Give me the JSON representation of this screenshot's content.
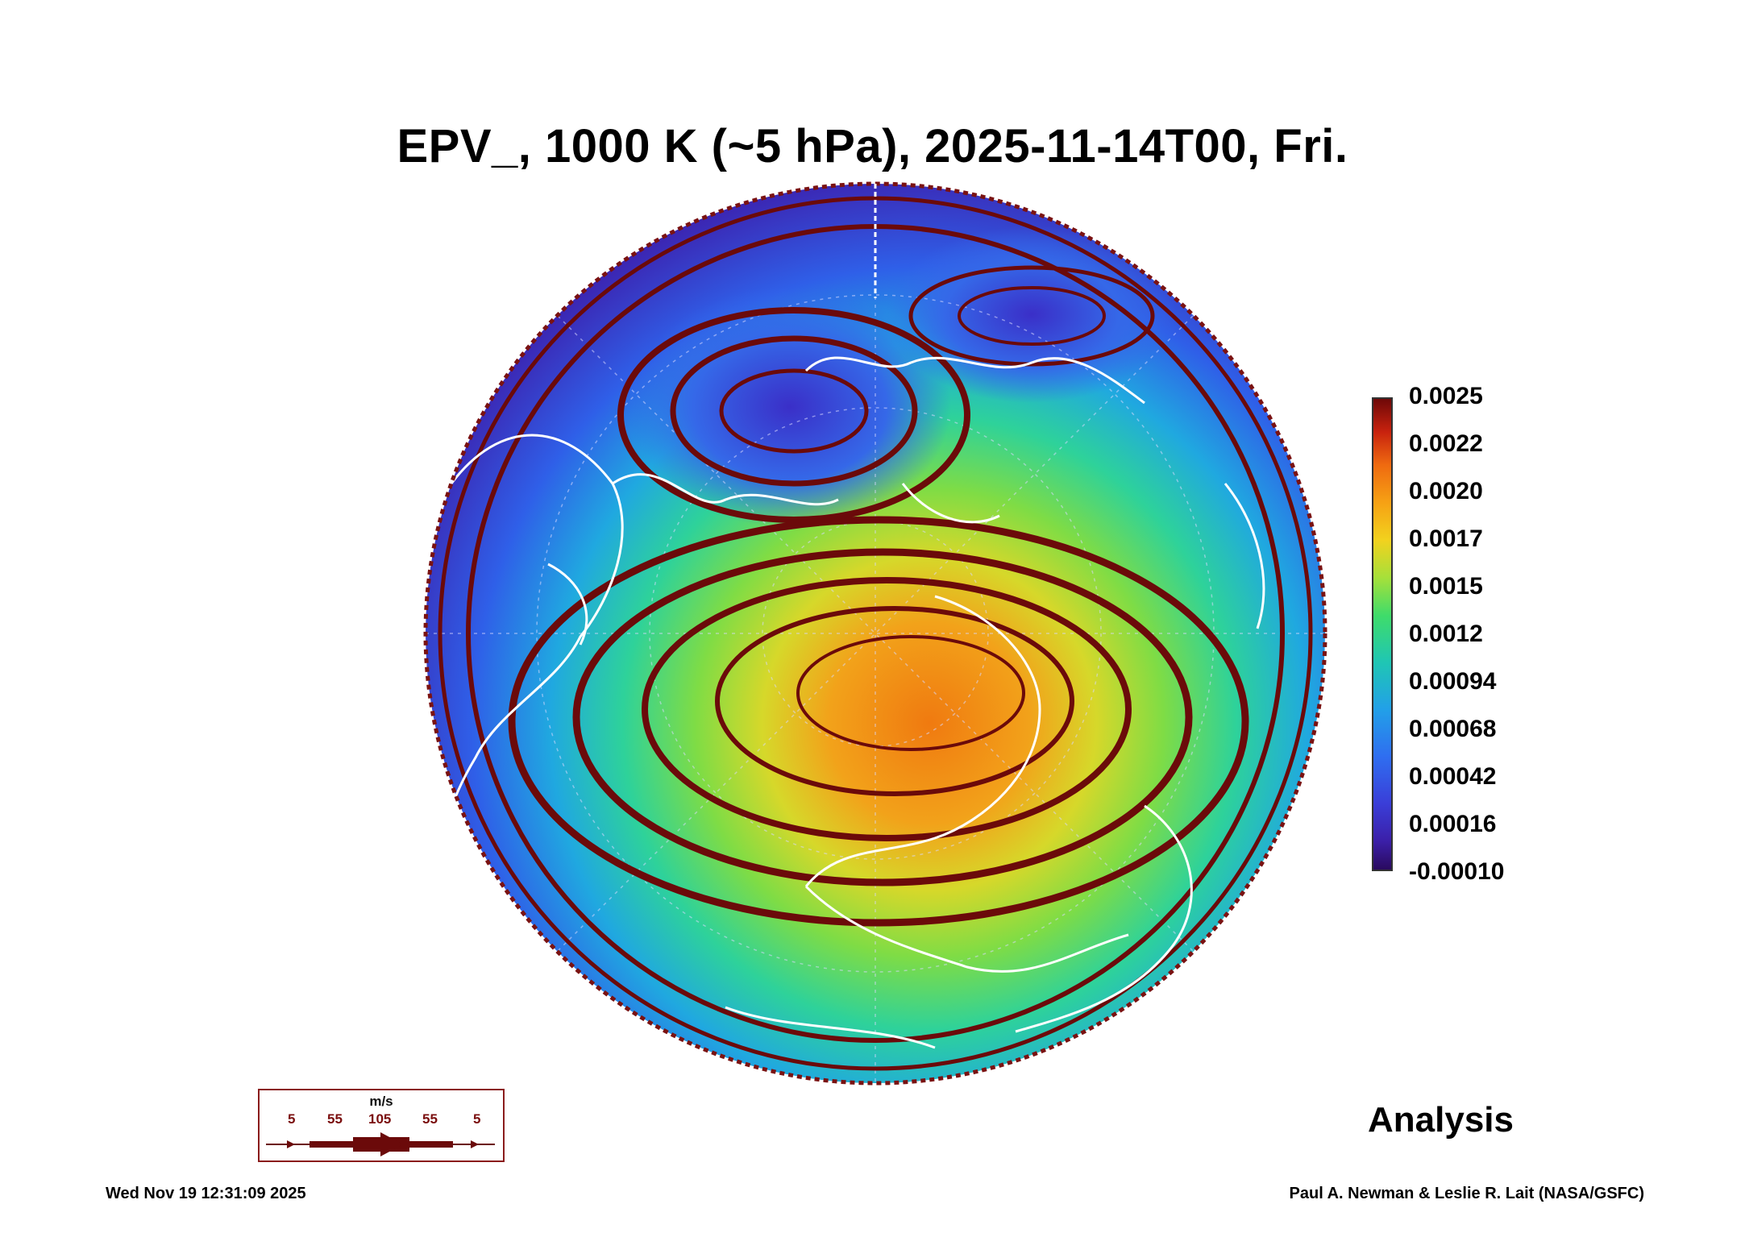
{
  "title": "EPV_, 1000 K (~5 hPa), 2025-11-14T00, Fri.",
  "colorbar": {
    "labels": [
      "0.0025",
      "0.0022",
      "0.0020",
      "0.0017",
      "0.0015",
      "0.0012",
      "0.00094",
      "0.00068",
      "0.00042",
      "0.00016",
      "-0.00010"
    ]
  },
  "map": {
    "projection": "orthographic polar",
    "field": "EPV_",
    "ocean_color": "#3c2fb8",
    "high_pv_color": "#f08a14",
    "streamline_color": "#6b0a0a",
    "coastline_color": "#ffffff"
  },
  "wind_legend": {
    "units": "m/s",
    "values": [
      "5",
      "55",
      "105",
      "55",
      "5"
    ]
  },
  "label_analysis": "Analysis",
  "footer": {
    "timestamp": "Wed Nov 19 12:31:09 2025",
    "credit": "Paul A. Newman & Leslie R. Lait (NASA/GSFC)"
  }
}
